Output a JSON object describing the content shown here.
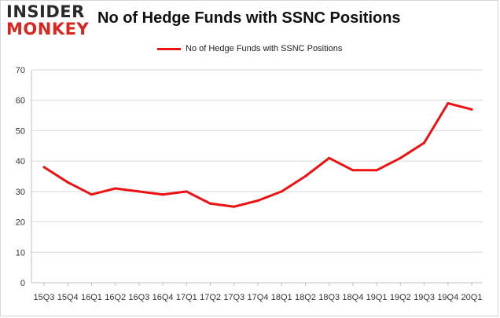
{
  "logo": {
    "line1": "INSIDER",
    "line2": "MONKEY"
  },
  "chart_data": {
    "type": "line",
    "title": "No of Hedge Funds with SSNC Positions",
    "xlabel": "",
    "ylabel": "",
    "categories": [
      "15Q3",
      "15Q4",
      "16Q1",
      "16Q2",
      "16Q3",
      "16Q4",
      "17Q1",
      "17Q2",
      "17Q3",
      "17Q4",
      "18Q1",
      "18Q2",
      "18Q3",
      "18Q4",
      "19Q1",
      "19Q2",
      "19Q3",
      "19Q4",
      "20Q1"
    ],
    "series": [
      {
        "name": "No of Hedge Funds with SSNC Positions",
        "color": "#ee1111",
        "values": [
          38,
          33,
          29,
          31,
          30,
          29,
          30,
          26,
          25,
          27,
          30,
          35,
          41,
          37,
          37,
          41,
          46,
          59,
          57
        ]
      }
    ],
    "ylim": [
      0,
      70
    ],
    "yticks": [
      0,
      10,
      20,
      30,
      40,
      50,
      60,
      70
    ],
    "grid": true,
    "legend": "top-center"
  }
}
